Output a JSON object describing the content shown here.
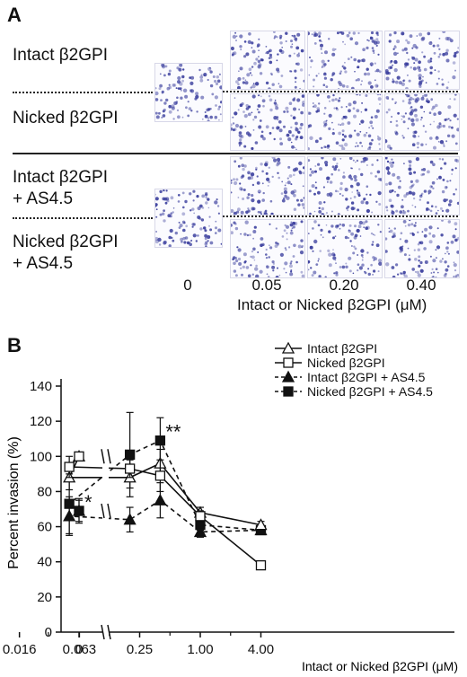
{
  "panel_a": {
    "letter": "A",
    "rows": [
      {
        "label_line1": "Intact β2GPI",
        "label_line2": ""
      },
      {
        "label_line1": "Nicked β2GPI",
        "label_line2": ""
      },
      {
        "label_line1": "Intact β2GPI",
        "label_line2": "+ AS4.5"
      },
      {
        "label_line1": "Nicked β2GPI",
        "label_line2": "+ AS4.5"
      }
    ],
    "concentrations": [
      "0",
      "0.05",
      "0.20",
      "0.40"
    ],
    "axis_title": "Intact or Nicked β2GPI (μM)",
    "cell_color": "#3b3f9e"
  },
  "panel_b": {
    "letter": "B",
    "chart_data": {
      "type": "line",
      "ylabel": "Percent invasion (%)",
      "xlabel": "Intact or Nicked β2GPI (μM)",
      "ylim": [
        0,
        140
      ],
      "yticks": [
        0,
        20,
        40,
        60,
        80,
        100,
        120,
        140
      ],
      "x_tick_labels": [
        "0",
        "0.016",
        "0.063",
        "0.25",
        "1.00",
        "4.00"
      ],
      "x_scale": "log (base 4) with axis break after 0",
      "legend_position": "top-right",
      "significance_marks": [
        {
          "text": "*",
          "x": "0",
          "series": "Nicked β2GPI + AS4.5"
        },
        {
          "text": "**",
          "x": 0.4,
          "series": "Nicked β2GPI + AS4.5"
        }
      ],
      "series": [
        {
          "name": "Intact β2GPI",
          "marker": "open-triangle",
          "line": "solid",
          "x": [
            0,
            0.05,
            0.2,
            0.4,
            1.0,
            4.0
          ],
          "y": [
            100,
            88,
            88,
            96,
            68,
            61
          ],
          "err": [
            0,
            7,
            6,
            8,
            3,
            2
          ]
        },
        {
          "name": "Nicked β2GPI",
          "marker": "open-square",
          "line": "solid",
          "x": [
            0,
            0.05,
            0.2,
            0.4,
            1.0,
            4.0
          ],
          "y": [
            100,
            94,
            93,
            89,
            66,
            38
          ],
          "err": [
            0,
            6,
            5,
            9,
            3,
            2
          ]
        },
        {
          "name": "Intact β2GPI + AS4.5",
          "marker": "filled-triangle",
          "line": "dashed",
          "x": [
            0,
            0.05,
            0.2,
            0.4,
            1.0,
            4.0
          ],
          "y": [
            69,
            66,
            64,
            75,
            57,
            58
          ],
          "err": [
            6,
            11,
            7,
            10,
            3,
            2
          ]
        },
        {
          "name": "Nicked β2GPI + AS4.5",
          "marker": "filled-square",
          "line": "dashed",
          "x": [
            0,
            0.05,
            0.2,
            0.4,
            1.0,
            4.0
          ],
          "y": [
            69,
            73,
            101,
            109,
            61,
            58
          ],
          "err": [
            7,
            17,
            24,
            13,
            3,
            2
          ]
        }
      ]
    }
  }
}
